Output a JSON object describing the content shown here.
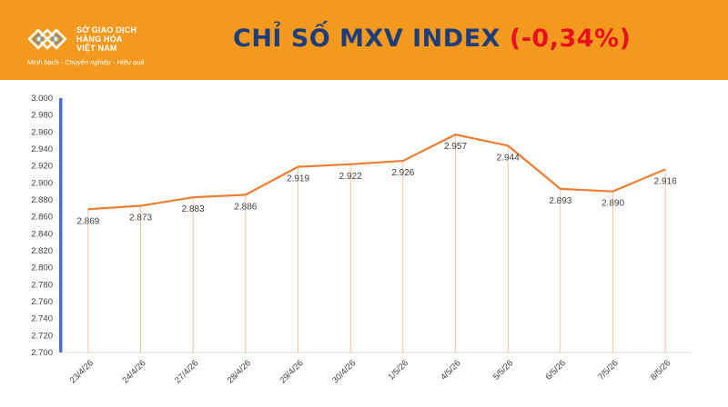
{
  "header": {
    "logo_lines": [
      "SỞ GIAO DỊCH",
      "HÀNG HÓA",
      "VIỆT NAM"
    ],
    "logo_slogan": "Minh bạch - Chuyên nghiệp - Hiệu quả",
    "title": "CHỈ SỐ MXV INDEX",
    "change": "(-0,34%)"
  },
  "colors": {
    "header_bg": "#f39a1e",
    "title": "#1f3d7a",
    "change": "#e8101d",
    "line": "#ed7d31",
    "axis_bar": "#4472c4"
  },
  "chart_data": {
    "type": "line",
    "title": "",
    "xlabel": "",
    "ylabel": "",
    "categories": [
      "23/4/26",
      "24/4/26",
      "27/4/26",
      "28/4/26",
      "29/4/26",
      "30/4/26",
      "1/5/26",
      "4/5/26",
      "5/5/26",
      "6/5/26",
      "7/5/26",
      "8/5/26"
    ],
    "series": [
      {
        "values": [
          2869,
          2873,
          2883,
          2886,
          2919,
          2922,
          2926,
          2957,
          2944,
          2893,
          2890,
          2916
        ],
        "labels": [
          "2.869",
          "2.873",
          "2.883",
          "2.886",
          "2.919",
          "2.922",
          "2.926",
          "2.957",
          "2.944",
          "2.893",
          "2.890",
          "2.916"
        ],
        "color": "#ed7d31"
      }
    ],
    "ylim": [
      2700,
      3000
    ],
    "yticks": [
      2700,
      2720,
      2740,
      2760,
      2780,
      2800,
      2820,
      2840,
      2860,
      2880,
      2900,
      2920,
      2940,
      2960,
      2980,
      3000
    ],
    "ytick_labels": [
      "2.700",
      "2.720",
      "2.740",
      "2.760",
      "2.780",
      "2.800",
      "2.820",
      "2.840",
      "2.860",
      "2.880",
      "2.900",
      "2.920",
      "2.940",
      "2.960",
      "2.980",
      "3.000"
    ],
    "drop_lines": true,
    "grid": false,
    "legend": "none"
  }
}
